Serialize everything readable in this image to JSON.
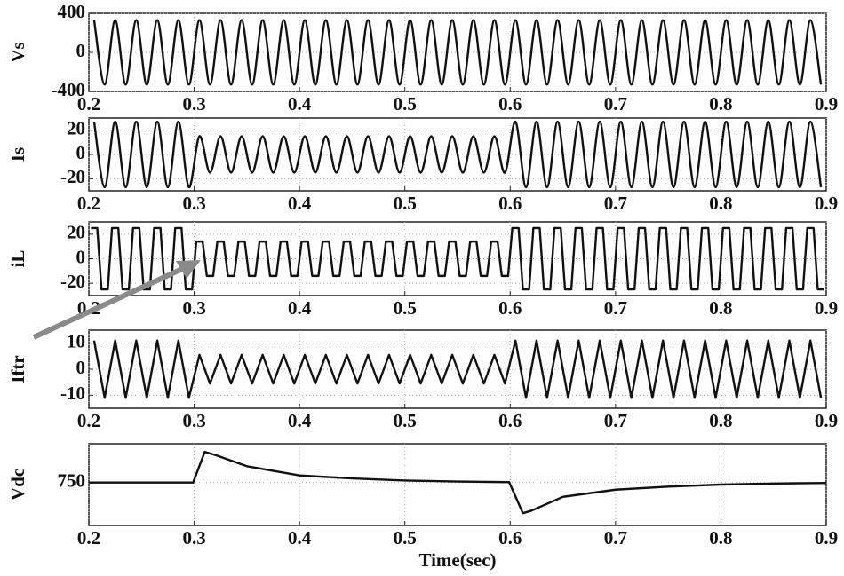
{
  "chart_data": [
    {
      "type": "line",
      "ylabel": "Vs",
      "xlim": [
        0.2,
        0.9
      ],
      "xticks": [
        0.2,
        0.3,
        0.4,
        0.5,
        0.6,
        0.7,
        0.8,
        0.9
      ],
      "ylim": [
        -400,
        400
      ],
      "yticks": [
        -400,
        0,
        400
      ],
      "grid": true,
      "curve": "smooth",
      "x": [
        0.205,
        0.215,
        0.225,
        0.235,
        0.245,
        0.255,
        0.265,
        0.275,
        0.285,
        0.295,
        0.305,
        0.315,
        0.325,
        0.335,
        0.345,
        0.355,
        0.365,
        0.375,
        0.385,
        0.395,
        0.405,
        0.415,
        0.425,
        0.435,
        0.445,
        0.455,
        0.465,
        0.475,
        0.485,
        0.495,
        0.505,
        0.515,
        0.525,
        0.535,
        0.545,
        0.555,
        0.565,
        0.575,
        0.585,
        0.595,
        0.605,
        0.615,
        0.625,
        0.635,
        0.645,
        0.655,
        0.665,
        0.675,
        0.685,
        0.695,
        0.705,
        0.715,
        0.725,
        0.735,
        0.745,
        0.755,
        0.765,
        0.775,
        0.785,
        0.795,
        0.805,
        0.815,
        0.825,
        0.835,
        0.845,
        0.855,
        0.865,
        0.875,
        0.885,
        0.895
      ],
      "series": [
        {
          "color": "#111111",
          "values": [
            330,
            -330,
            330,
            -330,
            330,
            -330,
            330,
            -330,
            330,
            -330,
            330,
            -330,
            330,
            -330,
            330,
            -330,
            330,
            -330,
            330,
            -330,
            330,
            -330,
            330,
            -330,
            330,
            -330,
            330,
            -330,
            330,
            -330,
            330,
            -330,
            330,
            -330,
            330,
            -330,
            330,
            -330,
            330,
            -330,
            330,
            -330,
            330,
            -330,
            330,
            -330,
            330,
            -330,
            330,
            -330,
            330,
            -330,
            330,
            -330,
            330,
            -330,
            330,
            -330,
            330,
            -330,
            330,
            -330,
            330,
            -330,
            330,
            -330,
            330,
            -330,
            330,
            -330
          ]
        }
      ]
    },
    {
      "type": "line",
      "ylabel": "Is",
      "xlim": [
        0.2,
        0.9
      ],
      "xticks": [
        0.2,
        0.3,
        0.4,
        0.5,
        0.6,
        0.7,
        0.8,
        0.9
      ],
      "ylim": [
        -30,
        30
      ],
      "yticks": [
        -20,
        0,
        20
      ],
      "grid": true,
      "curve": "smooth",
      "x": [
        0.205,
        0.215,
        0.225,
        0.235,
        0.245,
        0.255,
        0.265,
        0.275,
        0.285,
        0.295,
        0.305,
        0.315,
        0.325,
        0.335,
        0.345,
        0.355,
        0.365,
        0.375,
        0.385,
        0.395,
        0.405,
        0.415,
        0.425,
        0.435,
        0.445,
        0.455,
        0.465,
        0.475,
        0.485,
        0.495,
        0.505,
        0.515,
        0.525,
        0.535,
        0.545,
        0.555,
        0.565,
        0.575,
        0.585,
        0.595,
        0.605,
        0.615,
        0.625,
        0.635,
        0.645,
        0.655,
        0.665,
        0.675,
        0.685,
        0.695,
        0.705,
        0.715,
        0.725,
        0.735,
        0.745,
        0.755,
        0.765,
        0.775,
        0.785,
        0.795,
        0.805,
        0.815,
        0.825,
        0.835,
        0.845,
        0.855,
        0.865,
        0.875,
        0.885,
        0.895
      ],
      "series": [
        {
          "color": "#111111",
          "values": [
            27,
            -27,
            27,
            -27,
            27,
            -27,
            27,
            -27,
            27,
            -27,
            15,
            -15,
            15,
            -15,
            15,
            -15,
            15,
            -15,
            15,
            -15,
            15,
            -15,
            15,
            -15,
            15,
            -15,
            15,
            -15,
            15,
            -15,
            15,
            -15,
            15,
            -15,
            15,
            -15,
            15,
            -15,
            15,
            -15,
            27,
            -27,
            27,
            -27,
            27,
            -27,
            27,
            -27,
            27,
            -27,
            27,
            -27,
            27,
            -27,
            27,
            -27,
            27,
            -27,
            27,
            -27,
            27,
            -27,
            27,
            -27,
            27,
            -27,
            27,
            -27,
            27,
            -27
          ]
        }
      ]
    },
    {
      "type": "line",
      "ylabel": "iL",
      "xlim": [
        0.2,
        0.9
      ],
      "xticks": [
        0.2,
        0.3,
        0.4,
        0.5,
        0.6,
        0.7,
        0.8,
        0.9
      ],
      "ylim": [
        -30,
        30
      ],
      "yticks": [
        -20,
        0,
        20
      ],
      "grid": true,
      "curve": "step",
      "x": [
        0.205,
        0.215,
        0.225,
        0.235,
        0.245,
        0.255,
        0.265,
        0.275,
        0.285,
        0.295,
        0.305,
        0.315,
        0.325,
        0.335,
        0.345,
        0.355,
        0.365,
        0.375,
        0.385,
        0.395,
        0.405,
        0.415,
        0.425,
        0.435,
        0.445,
        0.455,
        0.465,
        0.475,
        0.485,
        0.495,
        0.505,
        0.515,
        0.525,
        0.535,
        0.545,
        0.555,
        0.565,
        0.575,
        0.585,
        0.595,
        0.605,
        0.615,
        0.625,
        0.635,
        0.645,
        0.655,
        0.665,
        0.675,
        0.685,
        0.695,
        0.705,
        0.715,
        0.725,
        0.735,
        0.745,
        0.755,
        0.765,
        0.775,
        0.785,
        0.795,
        0.805,
        0.815,
        0.825,
        0.835,
        0.845,
        0.855,
        0.865,
        0.875,
        0.885,
        0.895
      ],
      "series": [
        {
          "color": "#111111",
          "values": [
            25,
            -25,
            25,
            -25,
            25,
            -25,
            25,
            -25,
            25,
            -25,
            14,
            -14,
            14,
            -14,
            14,
            -14,
            14,
            -14,
            14,
            -14,
            14,
            -14,
            14,
            -14,
            14,
            -14,
            14,
            -14,
            14,
            -14,
            14,
            -14,
            14,
            -14,
            14,
            -14,
            14,
            -14,
            14,
            -14,
            25,
            -25,
            25,
            -25,
            25,
            -25,
            25,
            -25,
            25,
            -25,
            25,
            -25,
            25,
            -25,
            25,
            -25,
            25,
            -25,
            25,
            -25,
            25,
            -25,
            25,
            -25,
            25,
            -25,
            25,
            -25,
            25,
            -25
          ]
        }
      ]
    },
    {
      "type": "line",
      "ylabel": "Iftr",
      "xlim": [
        0.2,
        0.9
      ],
      "xticks": [
        0.2,
        0.3,
        0.4,
        0.5,
        0.6,
        0.7,
        0.8,
        0.9
      ],
      "ylim": [
        -15,
        15
      ],
      "yticks": [
        -10,
        0,
        10
      ],
      "grid": true,
      "curve": "linear",
      "x": [
        0.205,
        0.215,
        0.225,
        0.235,
        0.245,
        0.255,
        0.265,
        0.275,
        0.285,
        0.295,
        0.305,
        0.315,
        0.325,
        0.335,
        0.345,
        0.355,
        0.365,
        0.375,
        0.385,
        0.395,
        0.405,
        0.415,
        0.425,
        0.435,
        0.445,
        0.455,
        0.465,
        0.475,
        0.485,
        0.495,
        0.505,
        0.515,
        0.525,
        0.535,
        0.545,
        0.555,
        0.565,
        0.575,
        0.585,
        0.595,
        0.605,
        0.615,
        0.625,
        0.635,
        0.645,
        0.655,
        0.665,
        0.675,
        0.685,
        0.695,
        0.705,
        0.715,
        0.725,
        0.735,
        0.745,
        0.755,
        0.765,
        0.775,
        0.785,
        0.795,
        0.805,
        0.815,
        0.825,
        0.835,
        0.845,
        0.855,
        0.865,
        0.875,
        0.885,
        0.895
      ],
      "series": [
        {
          "color": "#111111",
          "values": [
            11,
            -11,
            11,
            -11,
            11,
            -11,
            11,
            -11,
            11,
            -11,
            5.5,
            -5.5,
            5.5,
            -5.5,
            5.5,
            -5.5,
            5.5,
            -5.5,
            5.5,
            -5.5,
            5.5,
            -5.5,
            5.5,
            -5.5,
            5.5,
            -5.5,
            5.5,
            -5.5,
            5.5,
            -5.5,
            5.5,
            -5.5,
            5.5,
            -5.5,
            5.5,
            -5.5,
            5.5,
            -5.5,
            5.5,
            -5.5,
            11,
            -11,
            11,
            -11,
            11,
            -11,
            11,
            -11,
            11,
            -11,
            11,
            -11,
            11,
            -11,
            11,
            -11,
            11,
            -11,
            11,
            -11,
            11,
            -11,
            11,
            -11,
            11,
            -11,
            11,
            -11,
            11,
            -11
          ]
        }
      ]
    },
    {
      "type": "line",
      "ylabel": "Vdc",
      "xlabel": "Time(sec)",
      "xlim": [
        0.2,
        0.9
      ],
      "xticks": [
        0.2,
        0.3,
        0.4,
        0.5,
        0.6,
        0.7,
        0.8,
        0.9
      ],
      "ylim": [
        540,
        940
      ],
      "yticks": [
        750
      ],
      "grid": true,
      "curve": "linear",
      "x": [
        0.2,
        0.299,
        0.31,
        0.32,
        0.35,
        0.4,
        0.45,
        0.5,
        0.55,
        0.599,
        0.612,
        0.62,
        0.65,
        0.7,
        0.75,
        0.8,
        0.85,
        0.9
      ],
      "series": [
        {
          "color": "#111111",
          "values": [
            750,
            750,
            900,
            885,
            830,
            785,
            770,
            760,
            755,
            752,
            600,
            612,
            680,
            715,
            730,
            740,
            745,
            748
          ]
        }
      ]
    }
  ]
}
